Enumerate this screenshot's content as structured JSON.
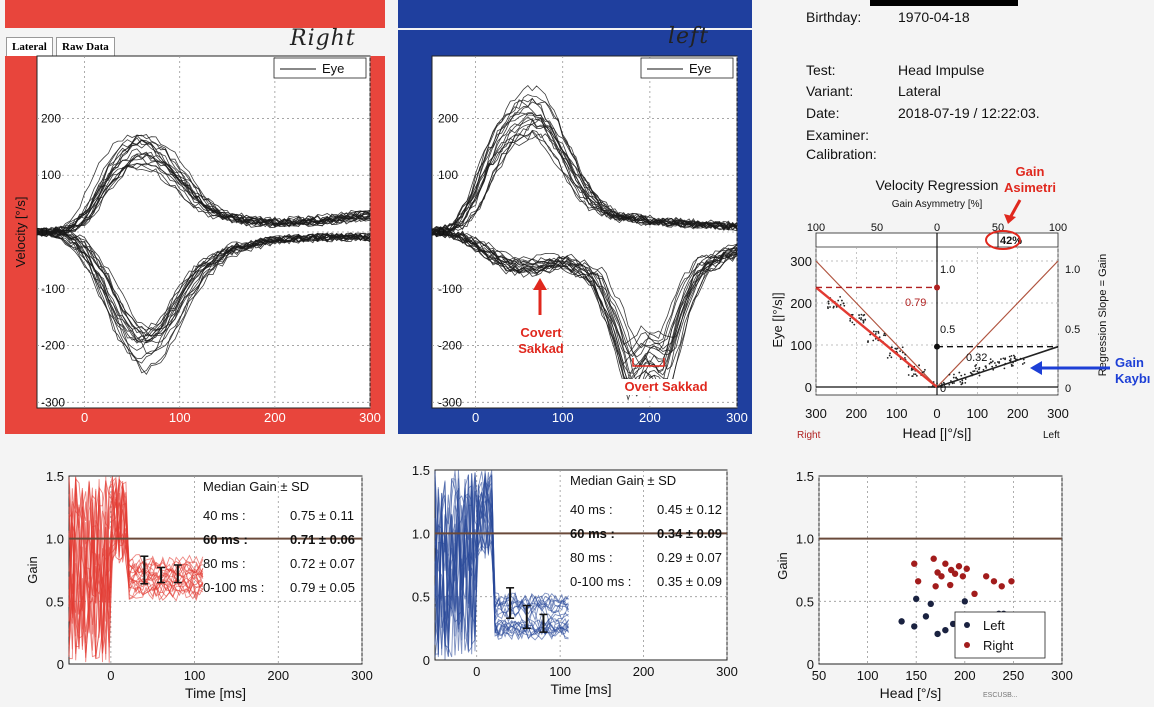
{
  "header": {
    "tabs": [
      "Lateral",
      "Raw Data"
    ],
    "handwritten_right": "Right",
    "handwritten_left": "left"
  },
  "patient": {
    "birthday_label": "Birthday:",
    "birthday_value": "1970-04-18",
    "test_label": "Test:",
    "test_value": "Head Impulse",
    "variant_label": "Variant:",
    "variant_value": "Lateral",
    "date_label": "Date:",
    "date_value": "2018-07-19 / 12:22:03.",
    "examiner_label": "Examiner:",
    "calibration_label": "Calibration:"
  },
  "annotations": {
    "covert_saccade": [
      "Covert",
      "Sakkad"
    ],
    "overt_saccade": "Overt  Sakkad",
    "gain_asymmetry": [
      "Gain",
      "Asimetri"
    ],
    "gain_loss": [
      "Gain",
      "Kaybı"
    ]
  },
  "colors": {
    "right_frame": "#e8453c",
    "left_frame": "#1f3f9e",
    "right_trace": "#e23a32",
    "left_trace": "#2a4a9a",
    "annotation_red": "#e0281e",
    "annotation_blue": "#1d3fd6"
  },
  "chart_data": [
    {
      "id": "velocity_right",
      "type": "line",
      "ylabel": "Velocity [°/s]",
      "xlim": [
        -50,
        300
      ],
      "ylim": [
        -310,
        310
      ],
      "xticks": [
        0,
        100,
        200,
        300
      ],
      "yticks": [
        -300,
        -200,
        -100,
        0,
        100,
        200
      ],
      "legend": "Eye",
      "grid": true,
      "series": [
        {
          "name": "Eye",
          "x": [
            -50,
            -20,
            0,
            20,
            40,
            60,
            80,
            100,
            120,
            140,
            160,
            200,
            250,
            300
          ],
          "y": [
            0,
            5,
            30,
            90,
            130,
            140,
            120,
            85,
            50,
            30,
            20,
            15,
            20,
            30
          ]
        },
        {
          "name": "Eye",
          "x": [
            -50,
            -20,
            0,
            20,
            40,
            60,
            80,
            100,
            120,
            140,
            160,
            200,
            250,
            300
          ],
          "y": [
            0,
            -5,
            -30,
            -90,
            -170,
            -215,
            -200,
            -140,
            -80,
            -50,
            -30,
            -15,
            -10,
            -10
          ]
        }
      ]
    },
    {
      "id": "velocity_left",
      "type": "line",
      "xlim": [
        -50,
        300
      ],
      "ylim": [
        -310,
        310
      ],
      "xticks": [
        0,
        100,
        200,
        300
      ],
      "yticks": [
        -300,
        -200,
        -100,
        0,
        100,
        200
      ],
      "legend": "Eye",
      "grid": true,
      "series": [
        {
          "name": "Eye",
          "x": [
            -50,
            -20,
            0,
            20,
            40,
            60,
            80,
            100,
            120,
            140,
            160,
            200,
            250,
            300
          ],
          "y": [
            0,
            10,
            60,
            140,
            190,
            215,
            205,
            150,
            90,
            50,
            30,
            20,
            15,
            10
          ]
        },
        {
          "name": "Eye",
          "x": [
            -50,
            -20,
            0,
            20,
            40,
            60,
            80,
            100,
            120,
            140,
            160,
            180,
            200,
            220,
            240,
            260,
            300
          ],
          "y": [
            0,
            -5,
            -20,
            -40,
            -55,
            -60,
            -55,
            -50,
            -60,
            -80,
            -150,
            -240,
            -200,
            -220,
            -120,
            -60,
            -30
          ]
        }
      ]
    },
    {
      "id": "velocity_regression",
      "type": "scatter",
      "title": "Velocity Regression",
      "subtitle": "Gain Asymmetry [%]",
      "xlabel": "Head [|°/s|]",
      "ylabel": "Eye [|°/s|]",
      "y2label": "Regression Slope = Gain",
      "top_ticks": [
        "100",
        "50",
        "0",
        "50",
        "100"
      ],
      "xticks": [
        "300",
        "200",
        "100",
        "0",
        "100",
        "200",
        "300"
      ],
      "yticks": [
        0,
        100,
        200,
        300
      ],
      "y2ticks": [
        "0",
        "0.5",
        "1.0"
      ],
      "side_labels": [
        "Right",
        "Left"
      ],
      "asymmetry_percent": "42%",
      "right_gain": "0.79",
      "left_gain": "0.32",
      "x": [
        -250,
        -200,
        -150,
        -100,
        -50,
        0,
        50,
        100,
        150,
        200
      ],
      "y": [
        200,
        160,
        120,
        80,
        40,
        0,
        20,
        40,
        55,
        65
      ]
    },
    {
      "id": "gain_right",
      "type": "line",
      "xlabel": "Time [ms]",
      "ylabel": "Gain",
      "xlim": [
        -50,
        300
      ],
      "ylim": [
        0,
        1.5
      ],
      "xticks": [
        0,
        100,
        200,
        300
      ],
      "yticks": [
        "0",
        "0.5",
        "1.0",
        "1.5"
      ],
      "table_title": "Median Gain ± SD",
      "table": [
        {
          "label": "40 ms :",
          "value": "0.75 ± 0.11"
        },
        {
          "label": "60 ms :",
          "value": "0.71 ± 0.06"
        },
        {
          "label": "80 ms :",
          "value": "0.72 ± 0.07"
        },
        {
          "label": "0-100 ms :",
          "value": "0.79 ± 0.05"
        }
      ],
      "median": {
        "x": [
          40,
          60,
          80
        ],
        "y": [
          0.75,
          0.71,
          0.72
        ],
        "sd": [
          0.11,
          0.06,
          0.07
        ]
      }
    },
    {
      "id": "gain_left",
      "type": "line",
      "xlabel": "Time [ms]",
      "xlim": [
        -50,
        300
      ],
      "ylim": [
        0,
        1.5
      ],
      "xticks": [
        0,
        100,
        200,
        300
      ],
      "yticks": [
        "0",
        "0.5",
        "1.0",
        "1.5"
      ],
      "table_title": "Median Gain ± SD",
      "table": [
        {
          "label": "40 ms :",
          "value": "0.45 ± 0.12"
        },
        {
          "label": "60 ms :",
          "value": "0.34 ± 0.09"
        },
        {
          "label": "80 ms :",
          "value": "0.29 ± 0.07"
        },
        {
          "label": "0-100 ms :",
          "value": "0.35 ± 0.09"
        }
      ],
      "median": {
        "x": [
          40,
          60,
          80
        ],
        "y": [
          0.45,
          0.34,
          0.29
        ],
        "sd": [
          0.12,
          0.09,
          0.07
        ]
      }
    },
    {
      "id": "gain_vs_head",
      "type": "scatter",
      "xlabel": "Head [°/s]",
      "ylabel": "Gain",
      "xlim": [
        50,
        300
      ],
      "ylim": [
        0,
        1.5
      ],
      "xticks": [
        50,
        100,
        150,
        200,
        250,
        300
      ],
      "yticks": [
        "0",
        "0.5",
        "1.0",
        "1.5"
      ],
      "legend_position": "bottom-right",
      "footer": "ESCUSB...",
      "series": [
        {
          "name": "Left",
          "x": [
            135,
            148,
            160,
            172,
            180,
            188,
            150,
            200,
            235,
            240,
            165
          ],
          "y": [
            0.34,
            0.3,
            0.38,
            0.24,
            0.27,
            0.32,
            0.52,
            0.5,
            0.4,
            0.4,
            0.48
          ],
          "color": "#1a2240"
        },
        {
          "name": "Right",
          "x": [
            148,
            152,
            168,
            172,
            176,
            180,
            186,
            190,
            194,
            198,
            202,
            210,
            222,
            230,
            238,
            248,
            170,
            185
          ],
          "y": [
            0.8,
            0.66,
            0.84,
            0.73,
            0.7,
            0.8,
            0.75,
            0.72,
            0.78,
            0.7,
            0.76,
            0.56,
            0.7,
            0.66,
            0.62,
            0.66,
            0.62,
            0.63
          ],
          "color": "#a21c1c"
        }
      ]
    }
  ]
}
